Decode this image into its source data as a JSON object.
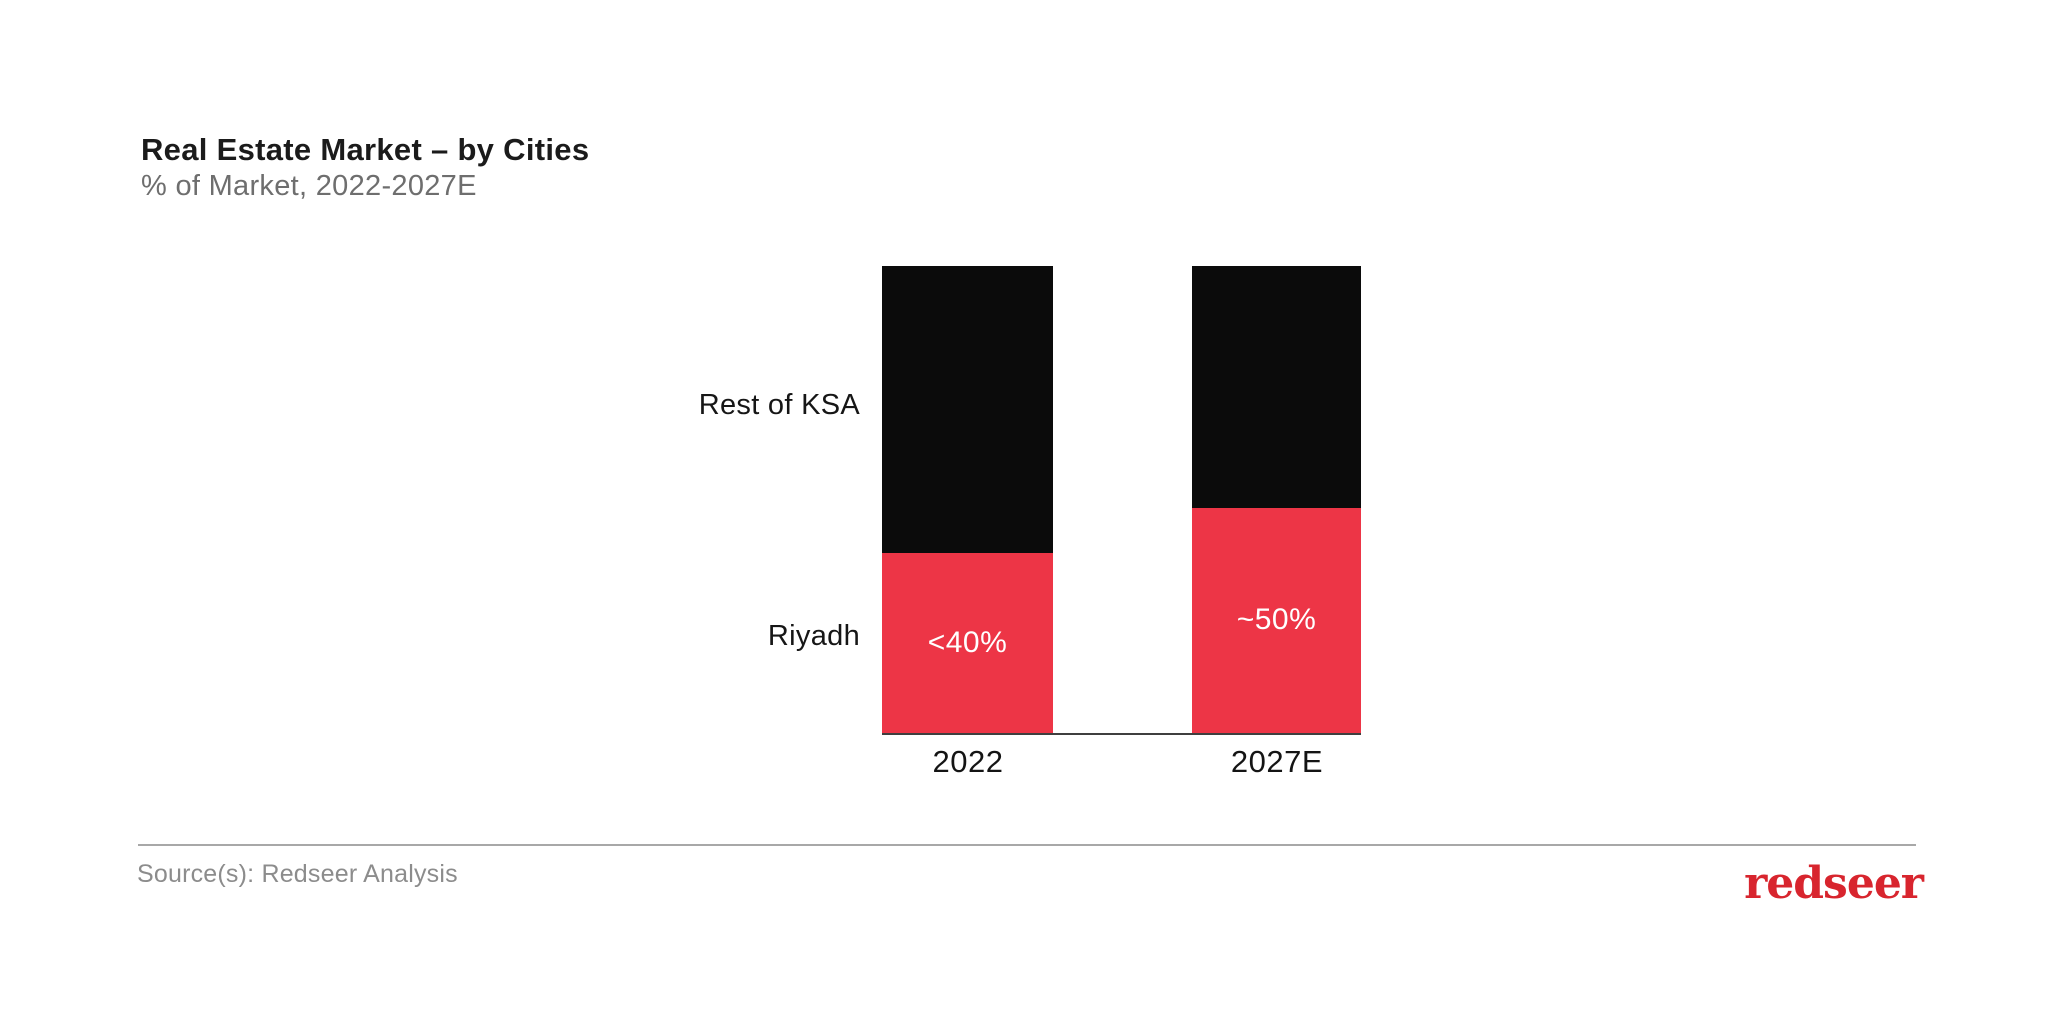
{
  "header": {
    "title": "Real Estate Market – by Cities",
    "subtitle": "% of Market, 2022-2027E"
  },
  "chart_data": {
    "type": "bar",
    "stacked": true,
    "unit": "% of market share",
    "categories": [
      "2022",
      "2027E"
    ],
    "series": [
      {
        "name": "Rest of KSA",
        "color": "#0b0b0b",
        "values": [
          61.5,
          51.8
        ],
        "labels": [
          "",
          ""
        ]
      },
      {
        "name": "Riyadh",
        "color": "#ed3546",
        "values": [
          38.5,
          48.2
        ],
        "labels": [
          "<40%",
          "~50%"
        ]
      }
    ],
    "ylim": [
      0,
      100
    ],
    "grid": false,
    "axis_labels_shown": false,
    "value_label_color": "#ffffff",
    "series_label_position": "left-of-bars",
    "title": "Real Estate Market – by Cities",
    "subtitle": "% of Market, 2022-2027E"
  },
  "footer": {
    "source": "Source(s): Redseer Analysis",
    "logo_text": "redseer",
    "logo_color": "#d8252e"
  }
}
